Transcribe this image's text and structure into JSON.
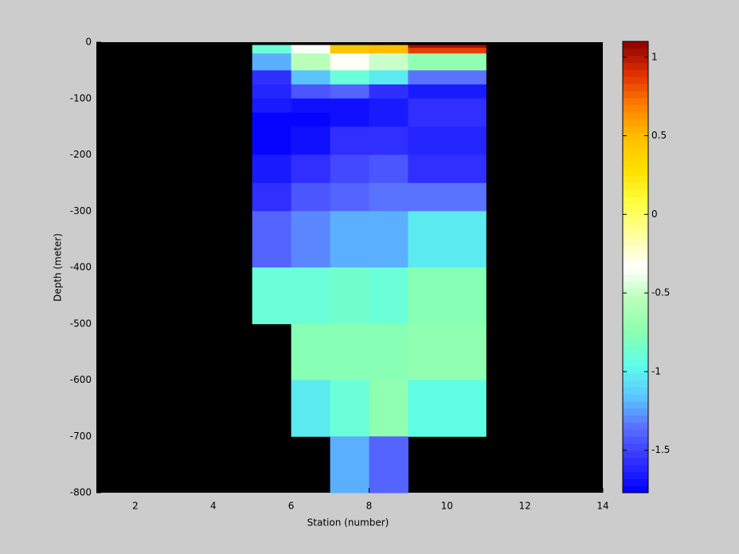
{
  "chart_data": {
    "type": "heatmap",
    "x_label": "Station (number)",
    "y_label": "Depth (meter)",
    "x_edges": [
      5,
      6,
      7,
      8,
      9,
      11
    ],
    "y_edges": [
      -5,
      -10,
      -20,
      -50,
      -75,
      -100,
      -125,
      -150,
      -200,
      -250,
      -300,
      -400,
      -500,
      -600,
      -700,
      -800
    ],
    "values": [
      [
        -0.9,
        -0.35,
        0.45,
        0.5,
        1.05
      ],
      [
        -0.9,
        -0.35,
        0.45,
        0.5,
        0.85
      ],
      [
        -1.2,
        -0.55,
        -0.3,
        -0.5,
        -0.7
      ],
      [
        -1.55,
        -1.15,
        -0.9,
        -1.05,
        -1.35
      ],
      [
        -1.6,
        -1.45,
        -1.4,
        -1.55,
        -1.65
      ],
      [
        -1.65,
        -1.72,
        -1.72,
        -1.65,
        -1.55
      ],
      [
        -1.76,
        -1.76,
        -1.7,
        -1.65,
        -1.55
      ],
      [
        -1.76,
        -1.72,
        -1.55,
        -1.55,
        -1.6
      ],
      [
        -1.68,
        -1.55,
        -1.5,
        -1.45,
        -1.55
      ],
      [
        -1.55,
        -1.45,
        -1.4,
        -1.35,
        -1.35
      ],
      [
        -1.4,
        -1.3,
        -1.2,
        -1.2,
        -1.05
      ],
      [
        -0.9,
        -0.9,
        -0.85,
        -0.9,
        -0.75
      ],
      [
        null,
        -0.75,
        -0.75,
        -0.75,
        -0.72
      ],
      [
        null,
        -1.05,
        -0.9,
        -0.72,
        -0.95
      ],
      [
        null,
        null,
        -1.2,
        -1.4,
        null
      ]
    ],
    "xlim": [
      1,
      14
    ],
    "xticks": [
      2,
      4,
      6,
      8,
      10,
      12,
      14
    ],
    "ylim": [
      -800,
      0
    ],
    "yticks": [
      0,
      -100,
      -200,
      -300,
      -400,
      -500,
      -600,
      -700,
      -800
    ],
    "background": "#000000",
    "colorbar": {
      "clim": [
        -1.77,
        1.1
      ],
      "ticks": [
        -1.5,
        -1,
        -0.5,
        0,
        0.5,
        1
      ],
      "colormap": [
        "#0000ff",
        "#3030ff",
        "#5a6cff",
        "#5ac8ff",
        "#5effe8",
        "#8affb0",
        "#b8ffb8",
        "#ffffff",
        "#ffffa0",
        "#ffff40",
        "#ffe000",
        "#ffc000",
        "#ff8000",
        "#e03000",
        "#8b0000"
      ]
    }
  }
}
